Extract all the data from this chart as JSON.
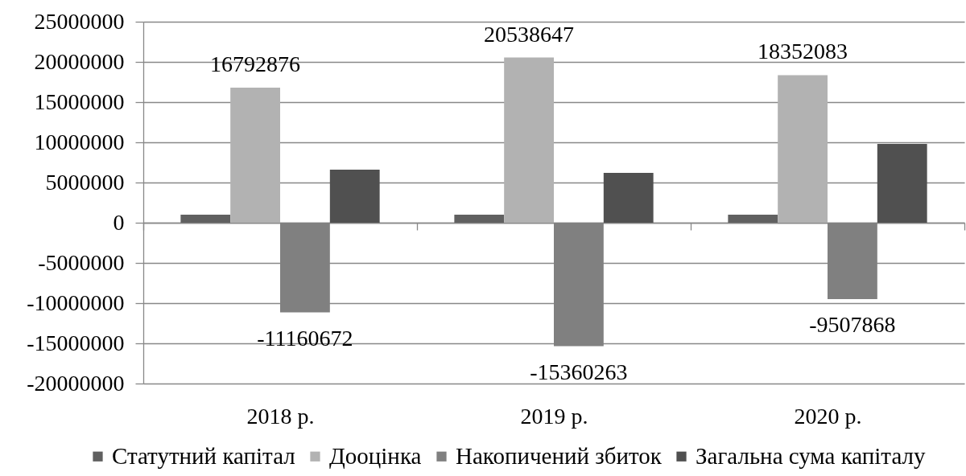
{
  "chart_data": {
    "type": "bar",
    "categories": [
      "2018 р.",
      "2019 р.",
      "2020 р."
    ],
    "series": [
      {
        "name": "Статутний капітал",
        "color": "#606060",
        "values": [
          1000000,
          1000000,
          1000000
        ]
      },
      {
        "name": "Дооцінка",
        "color": "#b2b2b2",
        "values": [
          16792876,
          20538647,
          18352083
        ],
        "value_labels": [
          "16792876",
          "20538647",
          "18352083"
        ]
      },
      {
        "name": "Накопичений збиток",
        "color": "#808080",
        "values": [
          -11160672,
          -15360263,
          -9507868
        ],
        "value_labels": [
          "-11160672",
          "-15360263",
          "-9507868"
        ]
      },
      {
        "name": "Загальна сума капіталу",
        "color": "#505050",
        "values": [
          6600000,
          6200000,
          9800000
        ]
      }
    ],
    "ylim": [
      -20000000,
      25000000
    ],
    "yticks": [
      -20000000,
      -15000000,
      -10000000,
      -5000000,
      0,
      5000000,
      10000000,
      15000000,
      20000000,
      25000000
    ],
    "grid": "y",
    "legend": "bottom"
  }
}
